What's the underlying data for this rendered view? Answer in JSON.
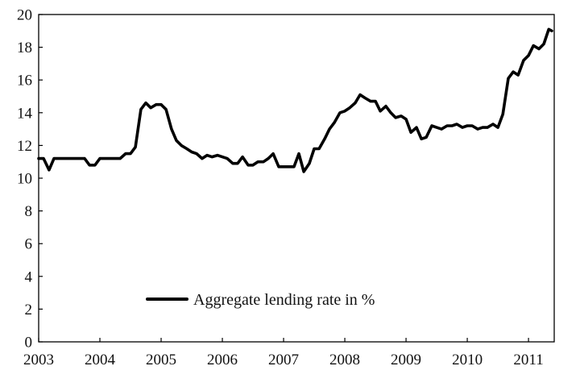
{
  "chart_data": {
    "type": "line",
    "title": "",
    "xlabel": "",
    "ylabel": "",
    "xlim": [
      2003,
      2011.42
    ],
    "ylim": [
      0,
      20
    ],
    "y_ticks": [
      0,
      2,
      4,
      6,
      8,
      10,
      12,
      14,
      16,
      18,
      20
    ],
    "x_ticks": [
      {
        "value": 2003,
        "label": "2003"
      },
      {
        "value": 2004,
        "label": "2004"
      },
      {
        "value": 2005,
        "label": "2005"
      },
      {
        "value": 2006,
        "label": "2006"
      },
      {
        "value": 2007,
        "label": "2007"
      },
      {
        "value": 2008,
        "label": "2008"
      },
      {
        "value": 2009,
        "label": "2009"
      },
      {
        "value": 2010,
        "label": "2010"
      },
      {
        "value": 2011,
        "label": "2011"
      }
    ],
    "grid": false,
    "legend": {
      "placement": "bottom-center"
    },
    "series": [
      {
        "name": "Aggregate lending rate in %",
        "color": "#000000",
        "x": [
          2003.0,
          2003.08,
          2003.17,
          2003.25,
          2003.33,
          2003.42,
          2003.5,
          2003.58,
          2003.67,
          2003.75,
          2003.83,
          2003.92,
          2004.0,
          2004.08,
          2004.17,
          2004.25,
          2004.33,
          2004.42,
          2004.5,
          2004.58,
          2004.67,
          2004.75,
          2004.83,
          2004.92,
          2005.0,
          2005.08,
          2005.17,
          2005.25,
          2005.33,
          2005.42,
          2005.5,
          2005.58,
          2005.67,
          2005.75,
          2005.83,
          2005.92,
          2006.0,
          2006.08,
          2006.17,
          2006.25,
          2006.33,
          2006.42,
          2006.5,
          2006.58,
          2006.67,
          2006.75,
          2006.83,
          2006.92,
          2007.0,
          2007.08,
          2007.17,
          2007.25,
          2007.33,
          2007.42,
          2007.5,
          2007.58,
          2007.67,
          2007.75,
          2007.83,
          2007.92,
          2008.0,
          2008.08,
          2008.17,
          2008.25,
          2008.33,
          2008.42,
          2008.5,
          2008.58,
          2008.67,
          2008.75,
          2008.83,
          2008.92,
          2009.0,
          2009.08,
          2009.17,
          2009.25,
          2009.33,
          2009.42,
          2009.5,
          2009.58,
          2009.67,
          2009.75,
          2009.83,
          2009.92,
          2010.0,
          2010.08,
          2010.17,
          2010.25,
          2010.33,
          2010.42,
          2010.5,
          2010.58,
          2010.67,
          2010.75,
          2010.83,
          2010.92,
          2011.0,
          2011.08,
          2011.17,
          2011.25,
          2011.33,
          2011.38
        ],
        "values": [
          11.2,
          11.2,
          10.5,
          11.2,
          11.2,
          11.2,
          11.2,
          11.2,
          11.2,
          11.2,
          10.8,
          10.8,
          11.2,
          11.2,
          11.2,
          11.2,
          11.2,
          11.5,
          11.5,
          11.9,
          14.2,
          14.6,
          14.3,
          14.5,
          14.5,
          14.2,
          13.0,
          12.3,
          12.0,
          11.8,
          11.6,
          11.5,
          11.2,
          11.4,
          11.3,
          11.4,
          11.3,
          11.2,
          10.9,
          10.9,
          11.3,
          10.8,
          10.8,
          11.0,
          11.0,
          11.2,
          11.5,
          10.7,
          10.7,
          10.7,
          10.7,
          11.5,
          10.4,
          10.9,
          11.8,
          11.8,
          12.4,
          13.0,
          13.4,
          14.0,
          14.1,
          14.3,
          14.6,
          15.1,
          14.9,
          14.7,
          14.7,
          14.1,
          14.4,
          14.0,
          13.7,
          13.8,
          13.6,
          12.8,
          13.1,
          12.4,
          12.5,
          13.2,
          13.1,
          13.0,
          13.2,
          13.2,
          13.3,
          13.1,
          13.2,
          13.2,
          13.0,
          13.1,
          13.1,
          13.3,
          13.1,
          13.9,
          16.1,
          16.5,
          16.3,
          17.2,
          17.5,
          18.1,
          17.9,
          18.2,
          19.1,
          19.0
        ]
      }
    ]
  }
}
